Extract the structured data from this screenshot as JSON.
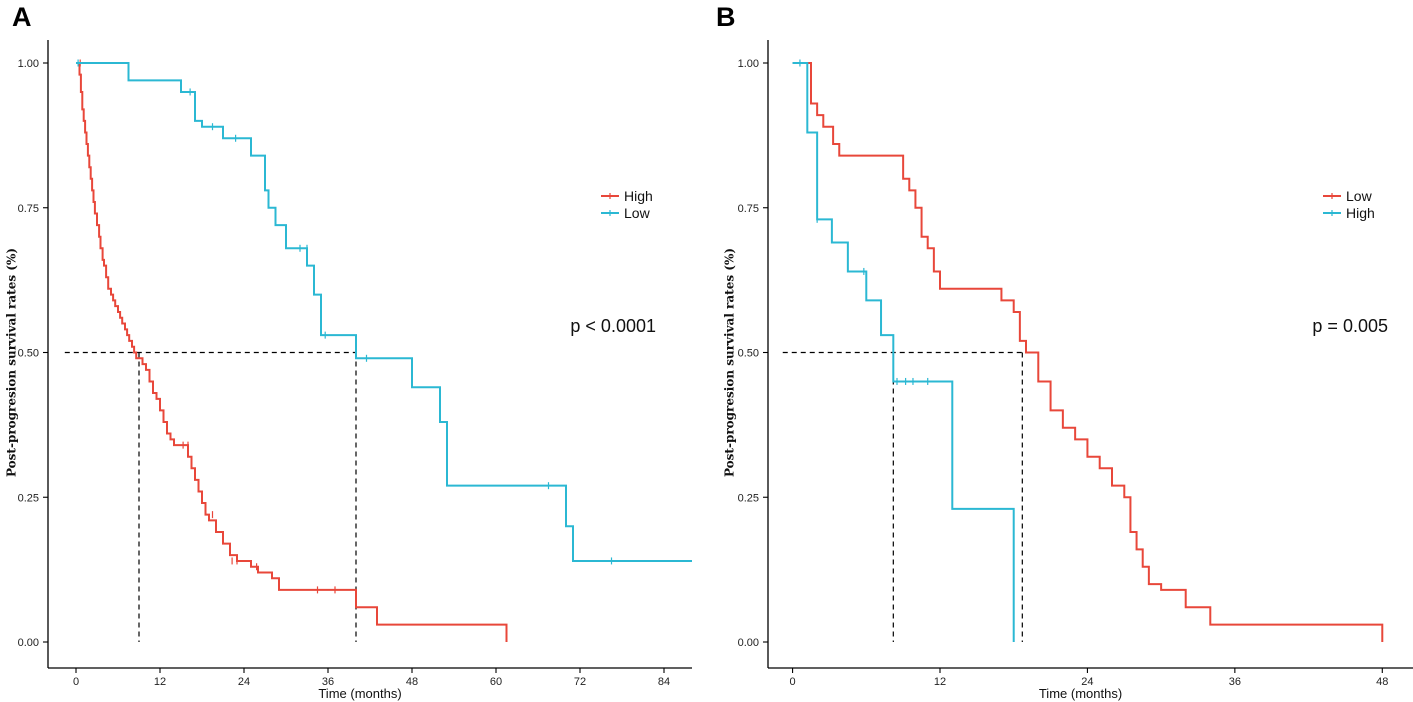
{
  "colors": {
    "red": "#E8473A",
    "blue": "#2BB8D3"
  },
  "chart_data": [
    {
      "type": "line",
      "panel_label": "A",
      "xlabel": "Time (months)",
      "ylabel": "Post-progresion survival rates (%)",
      "xlim": [
        -4,
        88
      ],
      "ylim": [
        0,
        1
      ],
      "xticks": [
        0,
        12,
        24,
        36,
        48,
        60,
        72,
        84
      ],
      "yticks": [
        0,
        0.25,
        0.5,
        0.75,
        1
      ],
      "ytick_labels": [
        "0.00",
        "0.25",
        "0.50",
        "0.75",
        "1.00"
      ],
      "grid": false,
      "legend_position": "right",
      "annotation": "p < 0.0001",
      "median_lines": [
        {
          "series": "High",
          "x": 9,
          "y": 0.5
        },
        {
          "series": "Low",
          "x": 40,
          "y": 0.5
        }
      ],
      "series": [
        {
          "name": "High",
          "color": "#E8473A",
          "x": [
            0,
            0.5,
            0.7,
            0.9,
            1.1,
            1.3,
            1.5,
            1.7,
            1.9,
            2.1,
            2.3,
            2.5,
            2.7,
            3.0,
            3.3,
            3.5,
            3.8,
            4.0,
            4.3,
            4.6,
            5.0,
            5.3,
            5.6,
            6.0,
            6.3,
            6.6,
            7.0,
            7.3,
            7.6,
            8.0,
            8.3,
            8.6,
            9.0,
            9.5,
            10.0,
            10.5,
            11.0,
            11.5,
            12.0,
            12.5,
            13.0,
            13.5,
            14.0,
            16.0,
            16.5,
            17.0,
            17.5,
            18.0,
            18.5,
            19.0,
            20.0,
            21.0,
            22.0,
            23.0,
            25.0,
            26.0,
            28.0,
            29.0,
            36.0,
            40.0,
            43.0,
            61.5
          ],
          "y": [
            1.0,
            0.98,
            0.95,
            0.92,
            0.9,
            0.88,
            0.86,
            0.84,
            0.82,
            0.8,
            0.78,
            0.76,
            0.74,
            0.72,
            0.7,
            0.68,
            0.66,
            0.65,
            0.63,
            0.61,
            0.6,
            0.59,
            0.58,
            0.57,
            0.56,
            0.55,
            0.54,
            0.53,
            0.52,
            0.51,
            0.5,
            0.49,
            0.49,
            0.48,
            0.47,
            0.45,
            0.43,
            0.42,
            0.4,
            0.38,
            0.36,
            0.35,
            0.34,
            0.32,
            0.3,
            0.28,
            0.26,
            0.24,
            0.22,
            0.21,
            0.19,
            0.17,
            0.15,
            0.14,
            0.13,
            0.12,
            0.11,
            0.09,
            0.09,
            0.06,
            0.03,
            0.0
          ],
          "censor_x": [
            0.6,
            15.3,
            16.0,
            19.5,
            22.3,
            23.0,
            25.8,
            34.5,
            37.0
          ],
          "censor_y": [
            1.0,
            0.34,
            0.34,
            0.22,
            0.14,
            0.14,
            0.13,
            0.09,
            0.09
          ]
        },
        {
          "name": "Low",
          "color": "#2BB8D3",
          "x": [
            0,
            7.5,
            15.0,
            17.0,
            18.0,
            21.0,
            25.0,
            27.0,
            27.5,
            28.5,
            30.0,
            33.0,
            34.0,
            35.0,
            40.0,
            48.0,
            52.0,
            53.0,
            70.0,
            71.0,
            88.0
          ],
          "y": [
            1.0,
            0.97,
            0.95,
            0.9,
            0.89,
            0.87,
            0.84,
            0.78,
            0.75,
            0.72,
            0.68,
            0.65,
            0.6,
            0.53,
            0.49,
            0.44,
            0.38,
            0.27,
            0.2,
            0.14,
            0.14
          ],
          "censor_x": [
            0.3,
            16.3,
            19.5,
            22.8,
            32.0,
            33.0,
            35.6,
            41.5,
            67.5,
            76.5
          ],
          "censor_y": [
            1.0,
            0.95,
            0.89,
            0.87,
            0.68,
            0.68,
            0.53,
            0.49,
            0.27,
            0.14
          ]
        }
      ]
    },
    {
      "type": "line",
      "panel_label": "B",
      "xlabel": "Time (months)",
      "ylabel": "Post-progresion survival rates (%)",
      "xlim": [
        -2,
        50.5
      ],
      "ylim": [
        0,
        1
      ],
      "xticks": [
        0,
        12,
        24,
        36,
        48
      ],
      "yticks": [
        0,
        0.25,
        0.5,
        0.75,
        1
      ],
      "ytick_labels": [
        "0.00",
        "0.25",
        "0.50",
        "0.75",
        "1.00"
      ],
      "grid": false,
      "legend_position": "right",
      "annotation": "p = 0.005",
      "median_lines": [
        {
          "series": "High",
          "x": 8.2,
          "y": 0.5
        },
        {
          "series": "Low",
          "x": 18.7,
          "y": 0.5
        }
      ],
      "series": [
        {
          "name": "Low",
          "color": "#E8473A",
          "x": [
            0,
            1.5,
            2.0,
            2.5,
            3.3,
            3.8,
            9.0,
            9.5,
            10.0,
            10.5,
            11.0,
            11.5,
            12.0,
            17.0,
            18.0,
            18.5,
            19.0,
            20.0,
            21.0,
            22.0,
            23.0,
            24.0,
            25.0,
            26.0,
            27.0,
            27.5,
            28.0,
            28.5,
            29.0,
            30.0,
            32.0,
            34.0,
            48.0
          ],
          "y": [
            1.0,
            0.93,
            0.91,
            0.89,
            0.86,
            0.84,
            0.8,
            0.78,
            0.75,
            0.7,
            0.68,
            0.64,
            0.61,
            0.59,
            0.57,
            0.52,
            0.5,
            0.45,
            0.4,
            0.37,
            0.35,
            0.32,
            0.3,
            0.27,
            0.25,
            0.19,
            0.16,
            0.13,
            0.1,
            0.09,
            0.06,
            0.03,
            0.0
          ],
          "censor_x": [],
          "censor_y": []
        },
        {
          "name": "High",
          "color": "#2BB8D3",
          "x": [
            0,
            1.2,
            2.0,
            3.2,
            4.5,
            6.0,
            7.2,
            8.2,
            13.0,
            18.0
          ],
          "y": [
            1.0,
            0.88,
            0.73,
            0.69,
            0.64,
            0.59,
            0.53,
            0.45,
            0.23,
            0.0
          ],
          "censor_x": [
            0.6,
            2.0,
            5.8,
            8.5,
            9.2,
            9.8,
            11.0
          ],
          "censor_y": [
            1.0,
            0.73,
            0.64,
            0.45,
            0.45,
            0.45,
            0.45
          ]
        }
      ]
    }
  ]
}
